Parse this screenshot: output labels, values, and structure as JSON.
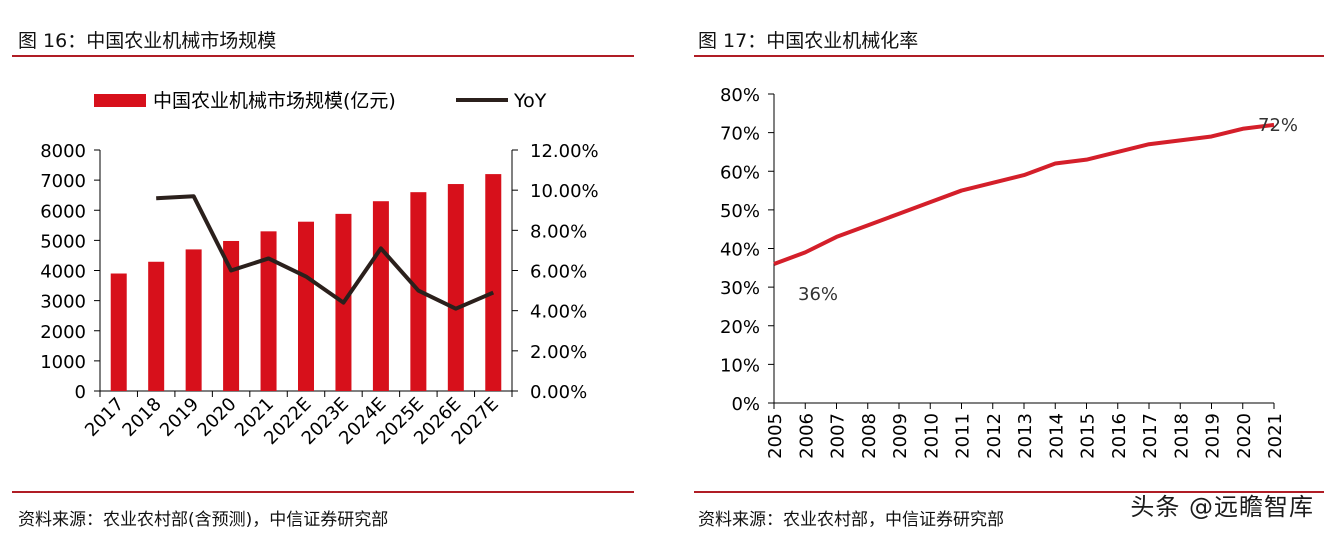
{
  "left": {
    "title": "图 16：中国农业机械市场规模",
    "source": "资料来源：农业农村部(含预测)，中信证券研究部"
  },
  "right": {
    "title": "图 17：中国农业机械化率",
    "source": "资料来源：农业农村部，中信证券研究部"
  },
  "watermark": "头条 @远瞻智库",
  "colors": {
    "bar": "#d7101b",
    "yoy": "#2b201c",
    "line": "#d41f2a",
    "rule": "#b01d25"
  },
  "chart_data": [
    {
      "type": "bar",
      "title": "",
      "categories": [
        "2017",
        "2018",
        "2019",
        "2020",
        "2021",
        "2022E",
        "2023E",
        "2024E",
        "2025E",
        "2026E",
        "2027E"
      ],
      "series": [
        {
          "name": "中国农业机械市场规模(亿元)",
          "type": "bar",
          "axis": "left",
          "values": [
            3900,
            4290,
            4700,
            4980,
            5300,
            5620,
            5880,
            6300,
            6600,
            6870,
            7200
          ]
        },
        {
          "name": "YoY",
          "type": "line",
          "axis": "right",
          "values": [
            null,
            0.096,
            0.097,
            0.06,
            0.066,
            0.057,
            0.044,
            0.071,
            0.05,
            0.041,
            0.049
          ]
        }
      ],
      "ylim_left": [
        0,
        8000
      ],
      "yticks_left": [
        "0",
        "1000",
        "2000",
        "3000",
        "4000",
        "5000",
        "6000",
        "7000",
        "8000"
      ],
      "ylim_right": [
        0,
        0.12
      ],
      "yticks_right": [
        "0.00%",
        "2.00%",
        "4.00%",
        "6.00%",
        "8.00%",
        "10.00%",
        "12.00%"
      ],
      "legend": "top",
      "grid": false
    },
    {
      "type": "line",
      "title": "",
      "x": [
        "2005",
        "2006",
        "2007",
        "2008",
        "2009",
        "2010",
        "2011",
        "2012",
        "2013",
        "2014",
        "2015",
        "2016",
        "2017",
        "2018",
        "2019",
        "2020",
        "2021"
      ],
      "series": [
        {
          "values": [
            0.36,
            0.39,
            0.43,
            0.46,
            0.49,
            0.52,
            0.55,
            0.57,
            0.59,
            0.62,
            0.63,
            0.65,
            0.67,
            0.68,
            0.69,
            0.71,
            0.72
          ]
        }
      ],
      "ylim": [
        0,
        0.8
      ],
      "yticks": [
        "0%",
        "10%",
        "20%",
        "30%",
        "40%",
        "50%",
        "60%",
        "70%",
        "80%"
      ],
      "annotations": [
        "36%",
        "72%"
      ],
      "legend": "none",
      "grid": false
    }
  ]
}
